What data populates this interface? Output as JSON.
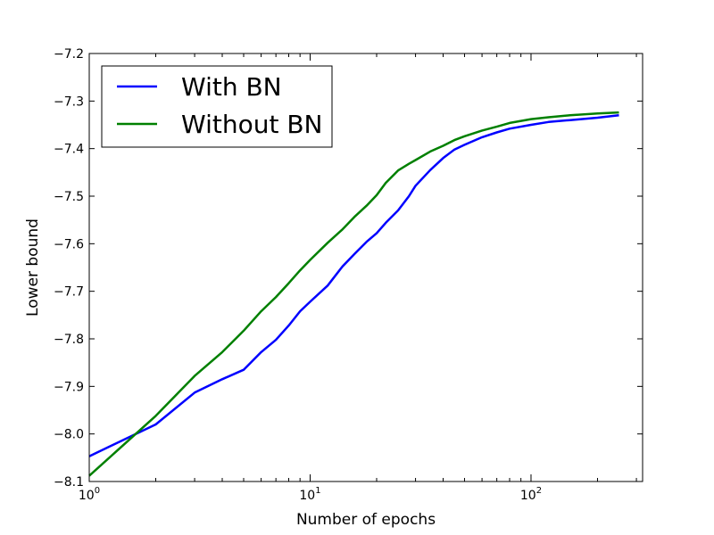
{
  "chart_data": {
    "type": "line",
    "x_scale": "log",
    "xlabel": "Number of epochs",
    "ylabel": "Lower bound",
    "xlim": [
      1,
      320
    ],
    "ylim": [
      -8.1,
      -7.2
    ],
    "x_ticks": [
      {
        "value": 1,
        "base": "10",
        "exp": "0"
      },
      {
        "value": 10,
        "base": "10",
        "exp": "1"
      },
      {
        "value": 100,
        "base": "10",
        "exp": "2"
      }
    ],
    "y_ticks": [
      {
        "value": -8.1,
        "label": "−8.1"
      },
      {
        "value": -8.0,
        "label": "−8.0"
      },
      {
        "value": -7.9,
        "label": "−7.9"
      },
      {
        "value": -7.8,
        "label": "−7.8"
      },
      {
        "value": -7.7,
        "label": "−7.7"
      },
      {
        "value": -7.6,
        "label": "−7.6"
      },
      {
        "value": -7.5,
        "label": "−7.5"
      },
      {
        "value": -7.4,
        "label": "−7.4"
      },
      {
        "value": -7.3,
        "label": "−7.3"
      },
      {
        "value": -7.2,
        "label": "−7.2"
      }
    ],
    "legend": "top-left",
    "series": [
      {
        "name": "With BN",
        "color": "#0000ff",
        "x": [
          1,
          2,
          3,
          4,
          5,
          6,
          7,
          8,
          9,
          10,
          12,
          14,
          16,
          18,
          20,
          22,
          25,
          28,
          30,
          35,
          40,
          45,
          50,
          60,
          70,
          80,
          100,
          120,
          150,
          200,
          250
        ],
        "y": [
          -8.047,
          -7.98,
          -7.913,
          -7.885,
          -7.865,
          -7.828,
          -7.802,
          -7.772,
          -7.742,
          -7.722,
          -7.688,
          -7.648,
          -7.62,
          -7.596,
          -7.578,
          -7.556,
          -7.53,
          -7.5,
          -7.478,
          -7.445,
          -7.42,
          -7.402,
          -7.392,
          -7.376,
          -7.366,
          -7.358,
          -7.35,
          -7.344,
          -7.34,
          -7.335,
          -7.33
        ]
      },
      {
        "name": "Without BN",
        "color": "#008000",
        "x": [
          1,
          2,
          3,
          4,
          5,
          6,
          7,
          8,
          9,
          10,
          12,
          14,
          16,
          18,
          20,
          22,
          25,
          28,
          30,
          35,
          40,
          45,
          50,
          60,
          70,
          80,
          100,
          120,
          150,
          200,
          250
        ],
        "y": [
          -8.088,
          -7.962,
          -7.878,
          -7.828,
          -7.783,
          -7.742,
          -7.712,
          -7.683,
          -7.656,
          -7.634,
          -7.598,
          -7.57,
          -7.542,
          -7.52,
          -7.498,
          -7.472,
          -7.446,
          -7.432,
          -7.424,
          -7.406,
          -7.394,
          -7.382,
          -7.374,
          -7.362,
          -7.354,
          -7.346,
          -7.338,
          -7.334,
          -7.33,
          -7.326,
          -7.324
        ]
      }
    ]
  }
}
